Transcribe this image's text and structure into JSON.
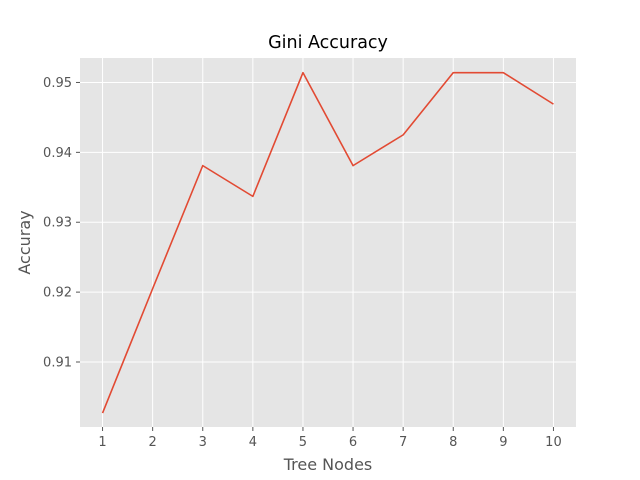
{
  "chart_data": {
    "type": "line",
    "title": "Gini Accuracy",
    "xlabel": "Tree Nodes",
    "ylabel": "Accuray",
    "x": [
      1,
      2,
      3,
      4,
      5,
      6,
      7,
      8,
      9,
      10
    ],
    "xticks": [
      "1",
      "2",
      "3",
      "4",
      "5",
      "6",
      "7",
      "8",
      "9",
      "10"
    ],
    "yticks": [
      0.91,
      0.92,
      0.93,
      0.94,
      0.95
    ],
    "ytick_labels": [
      "0.91",
      "0.92",
      "0.93",
      "0.94",
      "0.95"
    ],
    "xlim": [
      0.55,
      10.45
    ],
    "ylim": [
      0.9007,
      0.9535
    ],
    "grid": true,
    "series": [
      {
        "values": [
          0.9027,
          0.9205,
          0.9381,
          0.9337,
          0.9514,
          0.9381,
          0.9425,
          0.9514,
          0.9514,
          0.9469
        ],
        "color": "#E24A33"
      }
    ],
    "colors": {
      "plot_background": "#E5E5E5",
      "grid": "#FFFFFF",
      "text": "#555555"
    }
  }
}
